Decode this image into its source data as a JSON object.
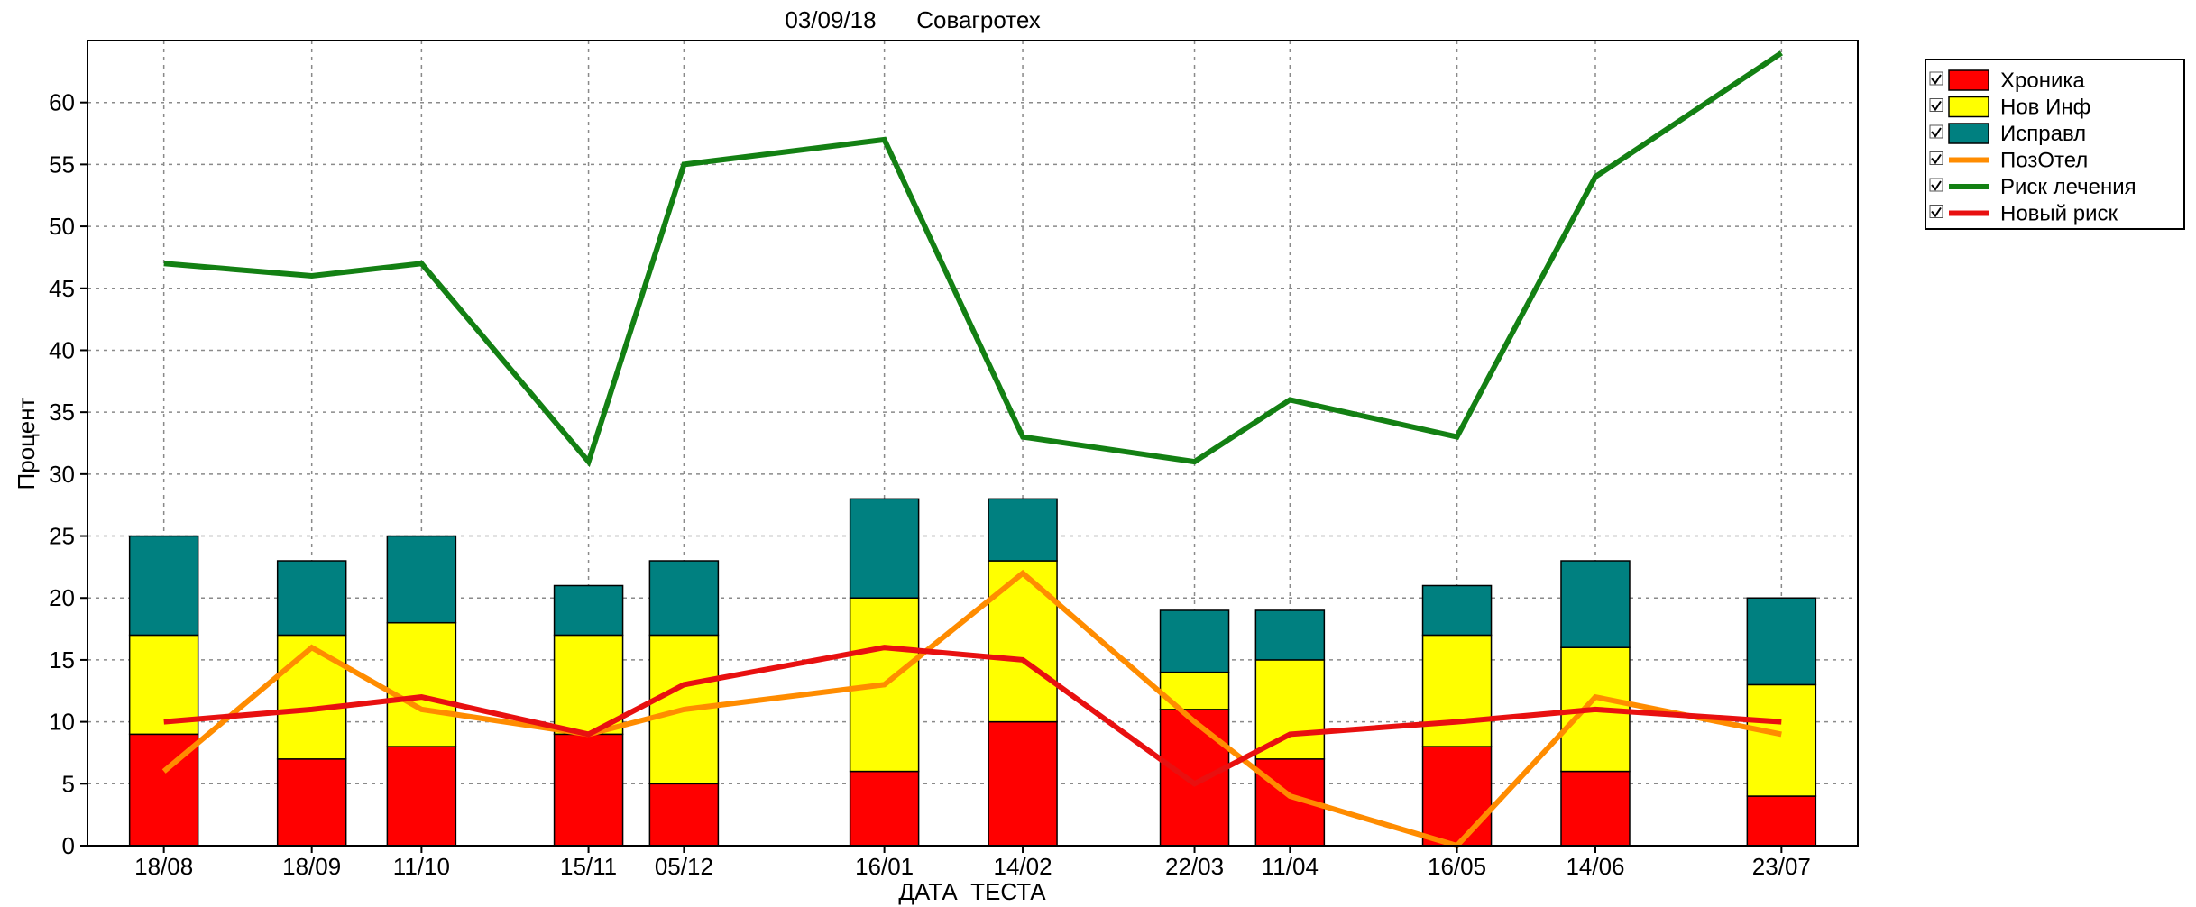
{
  "header": {
    "date": "03/09/18",
    "company": "Совагротех"
  },
  "chart_data": {
    "type": "bar",
    "stacked": true,
    "xlabel": "ДАТА  ТЕСТА",
    "ylabel": "Процент",
    "ylim": [
      0,
      65
    ],
    "yticks": [
      0,
      5,
      10,
      15,
      20,
      25,
      30,
      35,
      40,
      45,
      50,
      55,
      60
    ],
    "grid": true,
    "legend_position": "right",
    "categories": [
      "18/08",
      "18/09",
      "11/10",
      "15/11",
      "05/12",
      "16/01",
      "14/02",
      "22/03",
      "11/04",
      "16/05",
      "14/06",
      "23/07"
    ],
    "x_days": [
      0,
      31,
      54,
      89,
      109,
      151,
      180,
      216,
      236,
      271,
      300,
      339
    ],
    "x_range_days": [
      -16,
      355
    ],
    "bar_series": [
      {
        "name": "Хроника",
        "color": "#ff0000",
        "values": [
          9,
          7,
          8,
          9,
          5,
          6,
          10,
          11,
          7,
          8,
          6,
          4
        ]
      },
      {
        "name": "Нов Инф",
        "color": "#ffff00",
        "values": [
          8,
          10,
          10,
          8,
          12,
          14,
          13,
          3,
          8,
          9,
          10,
          9
        ]
      },
      {
        "name": "Исправл",
        "color": "#008080",
        "values": [
          8,
          6,
          7,
          4,
          6,
          8,
          5,
          5,
          4,
          4,
          7,
          7
        ]
      }
    ],
    "line_series": [
      {
        "name": "ПозОтел",
        "color": "#ff8c00",
        "values": [
          6,
          16,
          11,
          9,
          11,
          13,
          22,
          10,
          4,
          0,
          12,
          9
        ]
      },
      {
        "name": "Риск лечения",
        "color": "#138013",
        "values": [
          47,
          46,
          47,
          31,
          55,
          57,
          33,
          31,
          36,
          33,
          54,
          64
        ]
      },
      {
        "name": "Новый риск",
        "color": "#e81010",
        "values": [
          10,
          11,
          12,
          9,
          13,
          16,
          15,
          5,
          9,
          10,
          11,
          10
        ]
      }
    ]
  }
}
